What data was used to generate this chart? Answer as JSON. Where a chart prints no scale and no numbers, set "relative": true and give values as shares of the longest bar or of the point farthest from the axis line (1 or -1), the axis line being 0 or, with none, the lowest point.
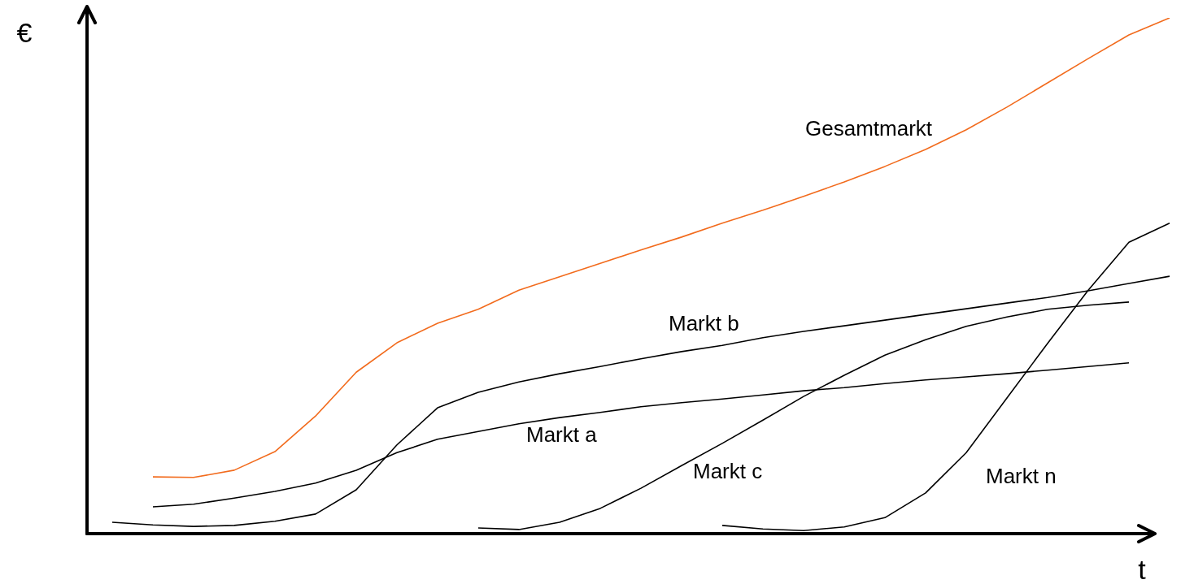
{
  "chart_data": {
    "type": "line",
    "relative": true,
    "xlabel": "t",
    "ylabel": "€",
    "legend": false,
    "marker": "none",
    "line_style": "solid",
    "categories": [
      null,
      null,
      null,
      null,
      null,
      null,
      null,
      null,
      null,
      null,
      null,
      null,
      null,
      null,
      null,
      null,
      null,
      null,
      null,
      null,
      null,
      null,
      null,
      null,
      null,
      null,
      null
    ],
    "series": [
      {
        "name": "Gesamtmarkt",
        "color": "#f26b1d",
        "values": [
          null,
          0.11,
          0.109,
          0.123,
          0.159,
          0.228,
          0.313,
          0.37,
          0.408,
          0.435,
          0.472,
          0.498,
          0.524,
          0.55,
          0.575,
          0.602,
          0.627,
          0.654,
          0.682,
          0.712,
          0.745,
          0.783,
          0.827,
          0.874,
          0.921,
          0.967,
          1.0
        ]
      },
      {
        "name": "Markt a",
        "color": "#000000",
        "values": [
          null,
          0.052,
          0.057,
          0.069,
          0.082,
          0.098,
          0.123,
          0.157,
          0.183,
          0.198,
          0.213,
          0.225,
          0.235,
          0.246,
          0.254,
          0.261,
          0.269,
          0.277,
          0.283,
          0.291,
          0.298,
          0.304,
          0.31,
          0.317,
          0.324,
          0.331,
          null
        ]
      },
      {
        "name": "Markt b",
        "color": "#000000",
        "values": [
          0.022,
          0.017,
          0.014,
          0.016,
          0.024,
          0.038,
          0.085,
          0.172,
          0.244,
          0.274,
          0.294,
          0.31,
          0.324,
          0.339,
          0.353,
          0.365,
          0.38,
          0.392,
          0.403,
          0.414,
          0.425,
          0.436,
          0.447,
          0.458,
          0.471,
          0.485,
          0.499
        ]
      },
      {
        "name": "Markt c",
        "color": "#000000",
        "values": [
          null,
          null,
          null,
          null,
          null,
          null,
          null,
          null,
          null,
          0.011,
          0.008,
          0.022,
          0.049,
          0.088,
          0.132,
          0.175,
          0.22,
          0.266,
          0.307,
          0.346,
          0.376,
          0.402,
          0.42,
          0.435,
          0.443,
          0.449,
          null
        ]
      },
      {
        "name": "Markt n",
        "color": "#000000",
        "values": [
          null,
          null,
          null,
          null,
          null,
          null,
          null,
          null,
          null,
          null,
          null,
          null,
          null,
          null,
          null,
          0.016,
          0.009,
          0.006,
          0.013,
          0.031,
          0.079,
          0.157,
          0.263,
          0.369,
          0.472,
          0.565,
          0.602
        ]
      }
    ]
  }
}
